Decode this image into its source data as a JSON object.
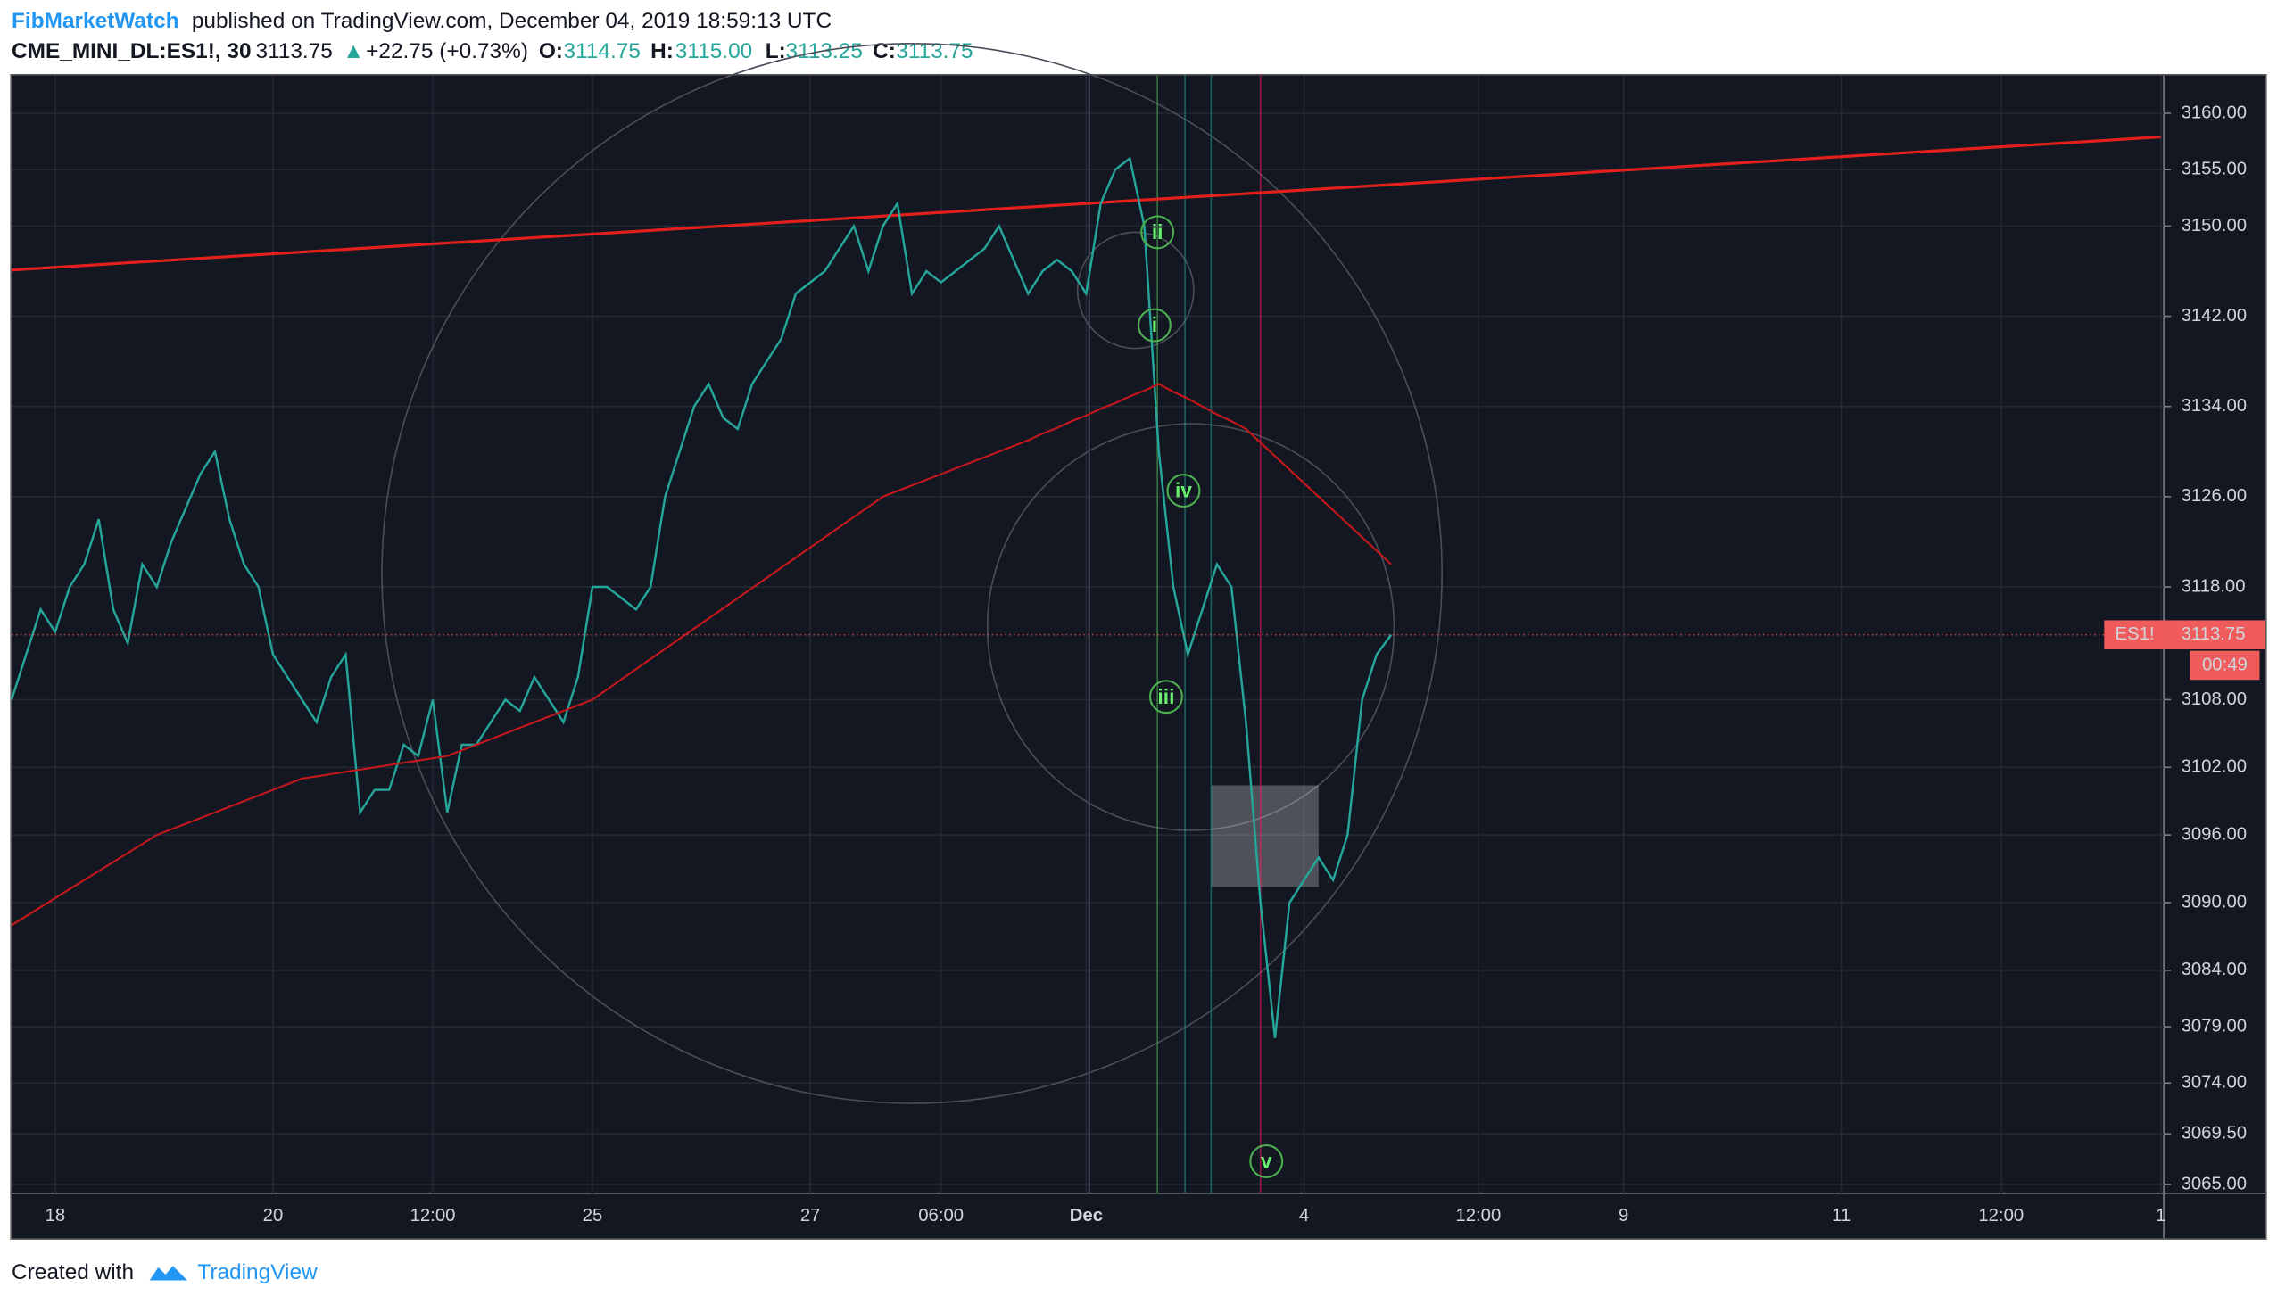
{
  "header": {
    "author": "FibMarketWatch",
    "published": "published on TradingView.com, December 04, 2019 18:59:13 UTC",
    "symbol": "CME_MINI_DL:ES1!, 30",
    "price": "3113.75",
    "arrow": "▲",
    "change": "+22.75 (+0.73%)",
    "o_label": "O:",
    "o": "3114.75",
    "h_label": "H:",
    "h": "3115.00",
    "l_label": "L:",
    "l": "3113.25",
    "c_label": "C:",
    "c": "3113.75"
  },
  "footer": {
    "created": "Created with",
    "brand": "TradingView"
  },
  "chart_data": {
    "type": "line",
    "grid": true,
    "categories": [
      null,
      null,
      null,
      "18",
      null,
      null,
      null,
      null,
      null,
      null,
      null,
      null,
      null,
      null,
      null,
      null,
      null,
      null,
      "20",
      null,
      null,
      null,
      null,
      null,
      null,
      null,
      null,
      null,
      null,
      "12:00",
      null,
      null,
      null,
      null,
      null,
      null,
      null,
      null,
      null,
      null,
      "25",
      null,
      null,
      null,
      null,
      null,
      null,
      null,
      null,
      null,
      null,
      null,
      null,
      null,
      null,
      "27",
      null,
      null,
      null,
      null,
      null,
      null,
      null,
      null,
      "06:00",
      null,
      null,
      null,
      null,
      null,
      null,
      null,
      null,
      null,
      "Dec",
      null,
      null,
      null,
      null,
      null,
      null,
      null,
      null,
      null,
      null,
      null,
      null,
      null,
      null,
      "4",
      null,
      null,
      null,
      null,
      null,
      null,
      null,
      null,
      null,
      null,
      null,
      "12:00",
      null,
      null,
      null,
      null,
      null,
      null,
      null,
      null,
      null,
      "9",
      null,
      null,
      null,
      null,
      null,
      null,
      null,
      null,
      null,
      null,
      null,
      null,
      null,
      null,
      "11",
      null,
      null,
      null,
      null,
      null,
      null,
      null,
      null,
      null,
      null,
      "12:00",
      null,
      null,
      null,
      null,
      null,
      null,
      null,
      null,
      null,
      null,
      "1"
    ],
    "series": [
      {
        "name": "ES1!",
        "color": "#26a69a",
        "values": [
          3108,
          3112,
          3116,
          3114,
          3118,
          3120,
          3124,
          3116,
          3113,
          3120,
          3118,
          3122,
          3125,
          3128,
          3130,
          3124,
          3120,
          3118,
          3112,
          3110,
          3108,
          3106,
          3110,
          3112,
          3098,
          3100,
          3100,
          3104,
          3103,
          3108,
          3098,
          3104,
          3104,
          3106,
          3108,
          3107,
          3110,
          3108,
          3106,
          3110,
          3118,
          3118,
          3117,
          3116,
          3118,
          3126,
          3130,
          3134,
          3136,
          3133,
          3132,
          3136,
          3138,
          3140,
          3144,
          3145,
          3146,
          3148,
          3150,
          3146,
          3150,
          3152,
          3144,
          3146,
          3145,
          3146,
          3147,
          3148,
          3150,
          3147,
          3144,
          3146,
          3147,
          3146,
          3144,
          3152,
          3155,
          3156,
          3150,
          3130,
          3118,
          3112,
          3116,
          3120,
          3118,
          3106,
          3090,
          3078,
          3090,
          3092,
          3094,
          3092,
          3096,
          3108,
          3112,
          3113.75,
          null,
          null,
          null,
          null,
          null,
          null,
          null,
          null,
          null,
          null,
          null,
          null,
          null,
          null,
          null,
          null,
          null,
          null,
          null,
          null,
          null,
          null,
          null,
          null,
          null,
          null,
          null,
          null,
          null,
          null,
          null,
          null,
          null,
          null,
          null,
          null,
          null,
          null,
          null,
          null,
          null,
          null,
          null,
          null,
          null,
          null,
          null,
          null,
          null,
          null,
          null,
          null,
          null
        ]
      },
      {
        "name": "MA",
        "color": "#c4181c",
        "values": [
          3088,
          3088.8,
          3089.6,
          3090.4,
          3091.2,
          3092,
          3092.8,
          3093.6,
          3094.4,
          3095.2,
          3096,
          3096.5,
          3097,
          3097.5,
          3098,
          3098.5,
          3099,
          3099.5,
          3100,
          3100.5,
          3101,
          3101.2,
          3101.4,
          3101.6,
          3101.8,
          3102,
          3102.2,
          3102.4,
          3102.6,
          3102.8,
          3103,
          3103.5,
          3104,
          3104.5,
          3105,
          3105.5,
          3106,
          3106.5,
          3107,
          3107.5,
          3108,
          3108.9,
          3109.8,
          3110.7,
          3111.6,
          3112.5,
          3113.4,
          3114.3,
          3115.2,
          3116.1,
          3117,
          3117.9,
          3118.8,
          3119.7,
          3120.6,
          3121.5,
          3122.4,
          3123.3,
          3124.2,
          3125.1,
          3126,
          3126.5,
          3127,
          3127.5,
          3128,
          3128.5,
          3129,
          3129.5,
          3130,
          3130.5,
          3131,
          3131.6,
          3132.1,
          3132.7,
          3133.2,
          3133.8,
          3134.3,
          3134.9,
          3135.4,
          3136,
          3135.3,
          3134.7,
          3134,
          3133.3,
          3132.7,
          3132,
          3130.8,
          3129.6,
          3128.4,
          3127.2,
          3126,
          3124.8,
          3123.6,
          3122.4,
          3121.2,
          3120,
          null,
          null,
          null,
          null,
          null,
          null,
          null,
          null,
          null,
          null,
          null,
          null,
          null,
          null,
          null,
          null,
          null,
          null,
          null,
          null,
          null,
          null,
          null,
          null,
          null,
          null,
          null,
          null,
          null,
          null,
          null,
          null,
          null,
          null,
          null,
          null,
          null,
          null,
          null,
          null,
          null,
          null,
          null,
          null,
          null,
          null,
          null,
          null,
          null,
          null,
          null,
          null,
          null
        ]
      }
    ],
    "trend_line": {
      "color": "#e0201b",
      "start": 3146.1,
      "end": 3157.9
    },
    "ylim": [
      3064.23,
      3163.35
    ],
    "yticks": [
      {
        "value": 3065,
        "label": "3065.00"
      },
      {
        "value": 3069.5,
        "label": "3069.50"
      },
      {
        "value": 3074,
        "label": "3074.00"
      },
      {
        "value": 3079,
        "label": "3079.00"
      },
      {
        "value": 3084,
        "label": "3084.00"
      },
      {
        "value": 3090,
        "label": "3090.00"
      },
      {
        "value": 3096,
        "label": "3096.00"
      },
      {
        "value": 3102,
        "label": "3102.00"
      },
      {
        "value": 3108,
        "label": "3108.00"
      },
      {
        "value": 3118,
        "label": "3118.00"
      },
      {
        "value": 3126,
        "label": "3126.00"
      },
      {
        "value": 3134,
        "label": "3134.00"
      },
      {
        "value": 3142,
        "label": "3142.00"
      },
      {
        "value": 3150,
        "label": "3150.00"
      },
      {
        "value": 3155,
        "label": "3155.00"
      },
      {
        "value": 3160,
        "label": "3160.00"
      }
    ],
    "last_price": 3113.75,
    "price_tag": "3113.75",
    "symbol_tag": "ES1!",
    "countdown": "00:49",
    "wave_labels": [
      "ii",
      "i",
      "iv",
      "iii",
      "v"
    ]
  }
}
